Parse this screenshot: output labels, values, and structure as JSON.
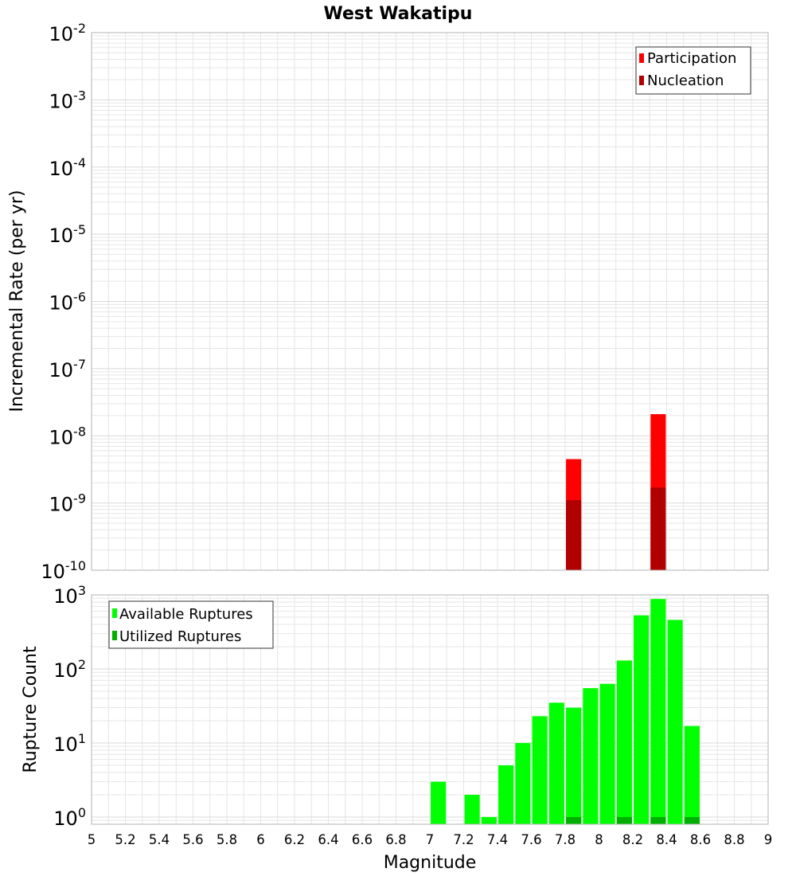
{
  "title": "West Wakatipu",
  "x_axis": {
    "label": "Magnitude",
    "ticks": [
      "5",
      "5.2",
      "5.4",
      "5.6",
      "5.8",
      "6",
      "6.2",
      "6.4",
      "6.6",
      "6.8",
      "7",
      "7.2",
      "7.4",
      "7.6",
      "7.8",
      "8",
      "8.2",
      "8.4",
      "8.6",
      "8.8",
      "9"
    ]
  },
  "colors": {
    "participation": "#ff0000",
    "nucleation": "#b00000",
    "available": "#00ff00",
    "utilized": "#00b000",
    "grid": "#e6e6e6",
    "frame": "#b3b3b3"
  },
  "chart_data": [
    {
      "type": "bar",
      "panel": "top",
      "title": "West Wakatipu",
      "xlabel": "",
      "ylabel": "Incremental Rate (per yr)",
      "xlim": [
        5,
        9
      ],
      "ylim": [
        1e-10,
        0.01
      ],
      "y_scale": "log",
      "y_ticks": [
        {
          "base": "10",
          "exp": "-10"
        },
        {
          "base": "10",
          "exp": "-9"
        },
        {
          "base": "10",
          "exp": "-8"
        },
        {
          "base": "10",
          "exp": "-7"
        },
        {
          "base": "10",
          "exp": "-6"
        },
        {
          "base": "10",
          "exp": "-5"
        },
        {
          "base": "10",
          "exp": "-4"
        },
        {
          "base": "10",
          "exp": "-3"
        },
        {
          "base": "10",
          "exp": "-2"
        }
      ],
      "bar_width": 0.09,
      "grid": true,
      "legend_position": "top-right",
      "series": [
        {
          "name": "Participation",
          "x": [
            7.85,
            8.35
          ],
          "values": [
            4.5e-09,
            2.1e-08
          ]
        },
        {
          "name": "Nucleation",
          "x": [
            7.85,
            8.35
          ],
          "values": [
            1.1e-09,
            1.7e-09
          ]
        }
      ]
    },
    {
      "type": "bar",
      "panel": "bottom",
      "xlabel": "Magnitude",
      "ylabel": "Rupture Count",
      "xlim": [
        5,
        9
      ],
      "ylim": [
        0.8,
        1000
      ],
      "y_scale": "log",
      "y_ticks": [
        {
          "base": "10",
          "exp": "0"
        },
        {
          "base": "10",
          "exp": "1"
        },
        {
          "base": "10",
          "exp": "2"
        },
        {
          "base": "10",
          "exp": "3"
        }
      ],
      "bar_width": 0.09,
      "grid": true,
      "legend_position": "top-left",
      "series": [
        {
          "name": "Available Ruptures",
          "x": [
            7.05,
            7.25,
            7.35,
            7.45,
            7.55,
            7.65,
            7.75,
            7.85,
            7.95,
            8.05,
            8.15,
            8.25,
            8.35,
            8.45,
            8.55
          ],
          "values": [
            3,
            2,
            1,
            5,
            10,
            23,
            35,
            30,
            55,
            63,
            130,
            530,
            880,
            460,
            17
          ]
        },
        {
          "name": "Utilized Ruptures",
          "x": [
            7.85,
            8.15,
            8.35,
            8.55
          ],
          "values": [
            1,
            1,
            1,
            1
          ]
        }
      ]
    }
  ]
}
